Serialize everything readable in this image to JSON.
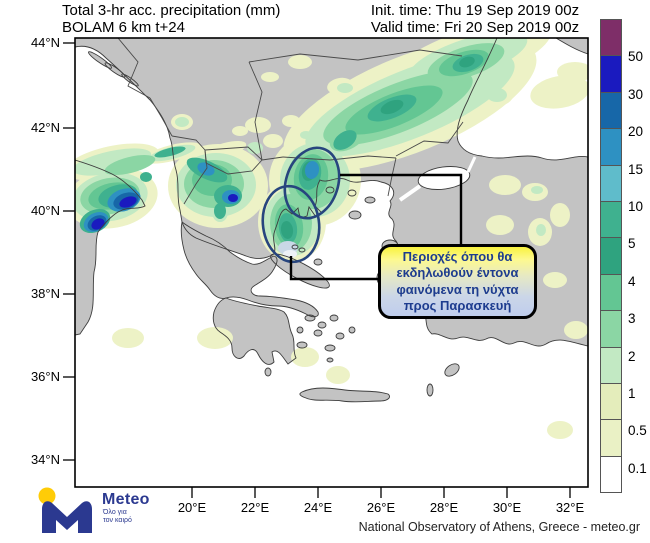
{
  "header": {
    "title_line1": "Total 3-hr acc. precipitation (mm)",
    "title_line2": "BOLAM 6 km t+24",
    "init_time": "Init. time: Thu 19 Sep 2019 00z",
    "valid_time": "Valid time: Fri 20 Sep 2019 00z"
  },
  "axes": {
    "lat_labels": [
      "44°N",
      "42°N",
      "40°N",
      "38°N",
      "36°N",
      "34°N"
    ],
    "lon_labels": [
      "20°E",
      "22°E",
      "24°E",
      "26°E",
      "28°E",
      "30°E",
      "32°E"
    ]
  },
  "colorbar": {
    "unit": "mm",
    "labels": [
      "50",
      "30",
      "20",
      "15",
      "10",
      "5",
      "4",
      "3",
      "2",
      "1",
      "0.5",
      "0.1"
    ],
    "colors": [
      "#7E2E68",
      "#1A1ABF",
      "#1767A8",
      "#2E91C2",
      "#5FBCCB",
      "#3FB18F",
      "#2FA37F",
      "#63C693",
      "#8BD6A4",
      "#C2E9C3",
      "#E4EDBB",
      "#EAF1C5",
      "#FFFFFF"
    ]
  },
  "annotation_box": {
    "line1": "Περιοχές όπου θα",
    "line2": "εκδηλωθούν έντονα",
    "line3": "φαινόμενα τη νύχτα",
    "line4": "προς Παρασκευή"
  },
  "branding": {
    "logo_icon": "meteo-m-logo",
    "logo_dot_icon": "yellow-sun-dot",
    "logo_name": "Meteo",
    "logo_tagline_line1": "Όλο για",
    "logo_tagline_line2": "τον καιρό",
    "attribution": "National Observatory of Athens, Greece - meteo.gr"
  },
  "map_colors": {
    "land": "#C3C3C3",
    "sea": "#FFFFFF",
    "ellipse_stroke": "#27457E"
  },
  "layout_meta": {
    "lat_tick_y": [
      43,
      128,
      211,
      294,
      377,
      460
    ],
    "lon_tick_x": [
      192,
      255,
      318,
      381,
      444,
      507,
      570
    ]
  }
}
